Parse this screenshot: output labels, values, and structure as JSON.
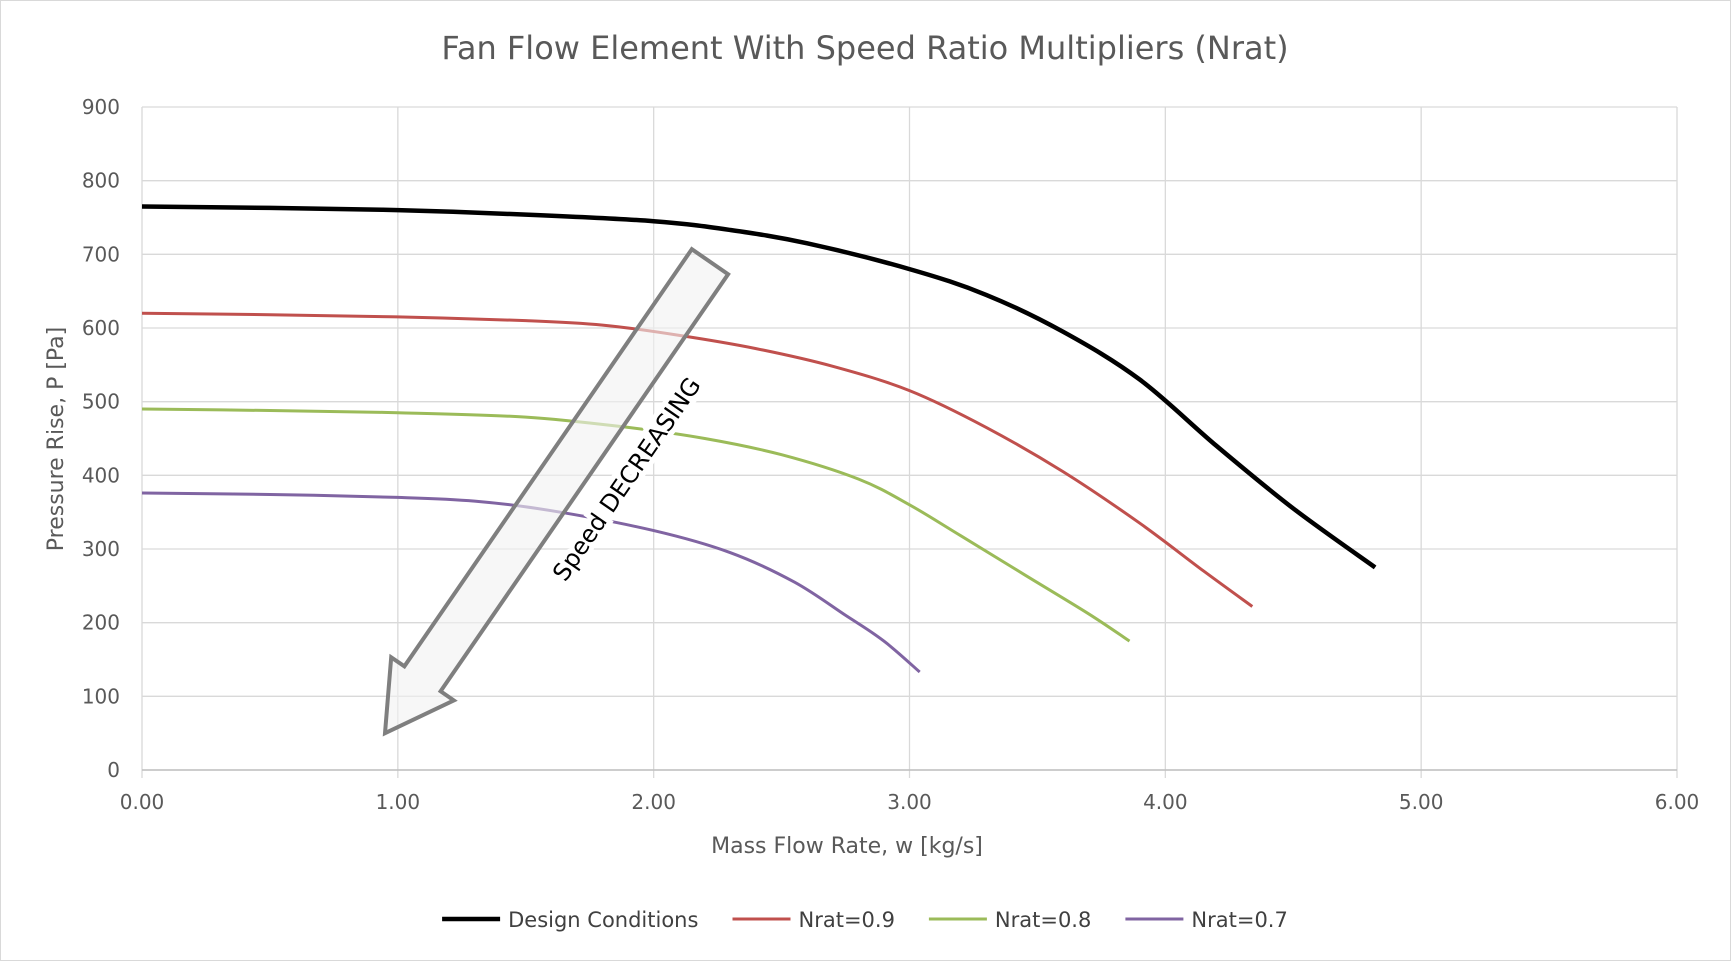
{
  "chart_data": {
    "type": "line",
    "title": "Fan Flow Element With Speed Ratio Multipliers (Nrat)",
    "xlabel": "Mass Flow Rate, w [kg/s]",
    "ylabel": "Pressure Rise, P [Pa]",
    "xlim": [
      0,
      6
    ],
    "ylim": [
      0,
      900
    ],
    "x_ticks": [
      "0.00",
      "1.00",
      "2.00",
      "3.00",
      "4.00",
      "5.00",
      "6.00"
    ],
    "y_ticks": [
      "0",
      "100",
      "200",
      "300",
      "400",
      "500",
      "600",
      "700",
      "800",
      "900"
    ],
    "grid": true,
    "legend_position": "bottom",
    "series": [
      {
        "name": "Design Conditions",
        "color": "#000000",
        "points": [
          [
            0.0,
            765
          ],
          [
            0.5,
            763
          ],
          [
            1.0,
            760
          ],
          [
            1.5,
            754
          ],
          [
            2.0,
            745
          ],
          [
            2.3,
            733
          ],
          [
            2.6,
            715
          ],
          [
            3.0,
            680
          ],
          [
            3.3,
            645
          ],
          [
            3.6,
            595
          ],
          [
            3.9,
            530
          ],
          [
            4.2,
            440
          ],
          [
            4.5,
            355
          ],
          [
            4.82,
            275
          ]
        ]
      },
      {
        "name": "Nrat=0.9",
        "color": "#C0504D",
        "points": [
          [
            0.0,
            620
          ],
          [
            0.5,
            618
          ],
          [
            1.0,
            615
          ],
          [
            1.5,
            610
          ],
          [
            1.8,
            604
          ],
          [
            2.1,
            590
          ],
          [
            2.4,
            572
          ],
          [
            2.7,
            548
          ],
          [
            3.0,
            515
          ],
          [
            3.3,
            465
          ],
          [
            3.6,
            405
          ],
          [
            3.9,
            335
          ],
          [
            4.15,
            270
          ],
          [
            4.34,
            222
          ]
        ]
      },
      {
        "name": "Nrat=0.8",
        "color": "#9BBB59",
        "points": [
          [
            0.0,
            490
          ],
          [
            0.5,
            488
          ],
          [
            1.0,
            485
          ],
          [
            1.5,
            479
          ],
          [
            1.9,
            465
          ],
          [
            2.2,
            450
          ],
          [
            2.5,
            428
          ],
          [
            2.8,
            395
          ],
          [
            3.0,
            360
          ],
          [
            3.2,
            318
          ],
          [
            3.45,
            265
          ],
          [
            3.7,
            212
          ],
          [
            3.86,
            175
          ]
        ]
      },
      {
        "name": "Nrat=0.7",
        "color": "#8064A2",
        "points": [
          [
            0.0,
            376
          ],
          [
            0.5,
            374
          ],
          [
            1.0,
            370
          ],
          [
            1.3,
            365
          ],
          [
            1.6,
            352
          ],
          [
            2.0,
            325
          ],
          [
            2.3,
            295
          ],
          [
            2.55,
            255
          ],
          [
            2.75,
            210
          ],
          [
            2.9,
            175
          ],
          [
            3.04,
            133
          ]
        ]
      }
    ],
    "annotation": {
      "text": "Speed DECREASING",
      "arrow_tail": [
        2.22,
        690
      ],
      "arrow_head": [
        0.95,
        50
      ]
    }
  }
}
